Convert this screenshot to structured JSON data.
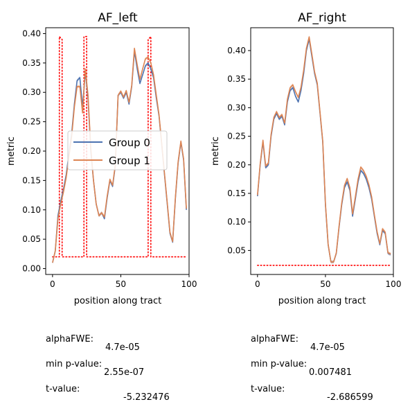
{
  "chart_data": [
    {
      "type": "line",
      "title": "AF_left",
      "xlabel": "position along tract",
      "ylabel": "metric",
      "xlim": [
        -5,
        100
      ],
      "ylim": [
        -0.01,
        0.41
      ],
      "xticks": [
        0,
        50,
        100
      ],
      "yticks": [
        0.0,
        0.05,
        0.1,
        0.15,
        0.2,
        0.25,
        0.3,
        0.35,
        0.4
      ],
      "ytick_labels": [
        "0.00",
        "0.05",
        "0.10",
        "0.15",
        "0.20",
        "0.25",
        "0.30",
        "0.35",
        "0.40"
      ],
      "grid": false,
      "legend": {
        "position": "center-left",
        "entries": [
          "Group 0",
          "Group 1"
        ]
      },
      "series": [
        {
          "name": "Group 0",
          "color": "#4c72b0",
          "band": true,
          "x": [
            0,
            2,
            4,
            6,
            8,
            10,
            12,
            14,
            16,
            18,
            20,
            22,
            24,
            26,
            28,
            30,
            32,
            34,
            36,
            38,
            40,
            42,
            44,
            46,
            48,
            50,
            52,
            54,
            56,
            58,
            60,
            62,
            64,
            66,
            68,
            70,
            72,
            74,
            76,
            78,
            80,
            82,
            84,
            86,
            88,
            90,
            92,
            94,
            96,
            98
          ],
          "y": [
            0.01,
            0.03,
            0.09,
            0.115,
            0.135,
            0.16,
            0.195,
            0.23,
            0.28,
            0.32,
            0.325,
            0.275,
            0.335,
            0.29,
            0.2,
            0.15,
            0.11,
            0.09,
            0.095,
            0.085,
            0.12,
            0.15,
            0.14,
            0.175,
            0.295,
            0.3,
            0.29,
            0.3,
            0.28,
            0.31,
            0.37,
            0.34,
            0.315,
            0.33,
            0.345,
            0.35,
            0.34,
            0.325,
            0.29,
            0.26,
            0.21,
            0.16,
            0.11,
            0.06,
            0.045,
            0.12,
            0.18,
            0.215,
            0.185,
            0.1
          ]
        },
        {
          "name": "Group 1",
          "color": "#dd8452",
          "band": true,
          "x": [
            0,
            2,
            4,
            6,
            8,
            10,
            12,
            14,
            16,
            18,
            20,
            22,
            24,
            26,
            28,
            30,
            32,
            34,
            36,
            38,
            40,
            42,
            44,
            46,
            48,
            50,
            52,
            54,
            56,
            58,
            60,
            62,
            64,
            66,
            68,
            70,
            72,
            74,
            76,
            78,
            80,
            82,
            84,
            86,
            88,
            90,
            92,
            94,
            96,
            98
          ],
          "y": [
            0.01,
            0.03,
            0.085,
            0.11,
            0.13,
            0.155,
            0.19,
            0.225,
            0.275,
            0.31,
            0.31,
            0.265,
            0.34,
            0.295,
            0.205,
            0.15,
            0.11,
            0.09,
            0.095,
            0.088,
            0.123,
            0.152,
            0.142,
            0.177,
            0.295,
            0.302,
            0.292,
            0.303,
            0.283,
            0.312,
            0.375,
            0.347,
            0.322,
            0.34,
            0.357,
            0.36,
            0.35,
            0.33,
            0.295,
            0.262,
            0.212,
            0.162,
            0.112,
            0.062,
            0.046,
            0.122,
            0.182,
            0.217,
            0.187,
            0.102
          ]
        }
      ],
      "significance_line": {
        "color": "#ff0000",
        "style": "dotted",
        "x": [
          0,
          5,
          5,
          7,
          7,
          23,
          23,
          25,
          25,
          70,
          70,
          72,
          72,
          98
        ],
        "y": [
          0.02,
          0.02,
          0.395,
          0.39,
          0.02,
          0.02,
          0.395,
          0.395,
          0.02,
          0.02,
          0.39,
          0.395,
          0.02,
          0.02
        ]
      },
      "stats": [
        {
          "label": "alphaFWE:",
          "value": "4.7e-05"
        },
        {
          "label": "min p-value:",
          "value": "2.55e-07"
        },
        {
          "label": "t-value:",
          "value": "-5.232476"
        }
      ]
    },
    {
      "type": "line",
      "title": "AF_right",
      "xlabel": "position along tract",
      "ylabel": "metric",
      "xlim": [
        -5,
        100
      ],
      "ylim": [
        0.008,
        0.44
      ],
      "xticks": [
        0,
        50,
        100
      ],
      "yticks": [
        0.05,
        0.1,
        0.15,
        0.2,
        0.25,
        0.3,
        0.35,
        0.4
      ],
      "ytick_labels": [
        "0.05",
        "0.10",
        "0.15",
        "0.20",
        "0.25",
        "0.30",
        "0.35",
        "0.40"
      ],
      "grid": false,
      "series": [
        {
          "name": "Group 0",
          "color": "#4c72b0",
          "band": true,
          "x": [
            0,
            2,
            4,
            6,
            8,
            10,
            12,
            14,
            16,
            18,
            20,
            22,
            24,
            26,
            28,
            30,
            32,
            34,
            36,
            38,
            40,
            42,
            44,
            46,
            48,
            50,
            52,
            54,
            56,
            58,
            60,
            62,
            64,
            66,
            68,
            70,
            72,
            74,
            76,
            78,
            80,
            82,
            84,
            86,
            88,
            90,
            92,
            94,
            96,
            98
          ],
          "y": [
            0.145,
            0.2,
            0.24,
            0.195,
            0.2,
            0.25,
            0.28,
            0.29,
            0.28,
            0.285,
            0.27,
            0.31,
            0.33,
            0.335,
            0.32,
            0.31,
            0.33,
            0.36,
            0.4,
            0.42,
            0.39,
            0.36,
            0.34,
            0.29,
            0.24,
            0.13,
            0.06,
            0.03,
            0.03,
            0.045,
            0.09,
            0.13,
            0.16,
            0.17,
            0.155,
            0.11,
            0.14,
            0.17,
            0.19,
            0.185,
            0.175,
            0.16,
            0.14,
            0.11,
            0.08,
            0.06,
            0.085,
            0.08,
            0.045,
            0.043
          ]
        },
        {
          "name": "Group 1",
          "color": "#dd8452",
          "band": true,
          "x": [
            0,
            2,
            4,
            6,
            8,
            10,
            12,
            14,
            16,
            18,
            20,
            22,
            24,
            26,
            28,
            30,
            32,
            34,
            36,
            38,
            40,
            42,
            44,
            46,
            48,
            50,
            52,
            54,
            56,
            58,
            60,
            62,
            64,
            66,
            68,
            70,
            72,
            74,
            76,
            78,
            80,
            82,
            84,
            86,
            88,
            90,
            92,
            94,
            96,
            98
          ],
          "y": [
            0.147,
            0.202,
            0.243,
            0.198,
            0.203,
            0.253,
            0.283,
            0.293,
            0.283,
            0.288,
            0.273,
            0.315,
            0.335,
            0.34,
            0.328,
            0.318,
            0.336,
            0.366,
            0.404,
            0.424,
            0.394,
            0.363,
            0.343,
            0.292,
            0.242,
            0.132,
            0.061,
            0.03,
            0.03,
            0.046,
            0.092,
            0.133,
            0.164,
            0.176,
            0.16,
            0.114,
            0.144,
            0.175,
            0.196,
            0.19,
            0.18,
            0.165,
            0.144,
            0.113,
            0.083,
            0.062,
            0.088,
            0.082,
            0.046,
            0.044
          ]
        }
      ],
      "significance_line": {
        "color": "#ff0000",
        "style": "dotted",
        "x": [
          0,
          98
        ],
        "y": [
          0.024,
          0.024
        ]
      },
      "stats": [
        {
          "label": "alphaFWE:",
          "value": "4.7e-05"
        },
        {
          "label": "min p-value:",
          "value": "0.007481"
        },
        {
          "label": "t-value:",
          "value": "-2.686599"
        }
      ]
    }
  ]
}
